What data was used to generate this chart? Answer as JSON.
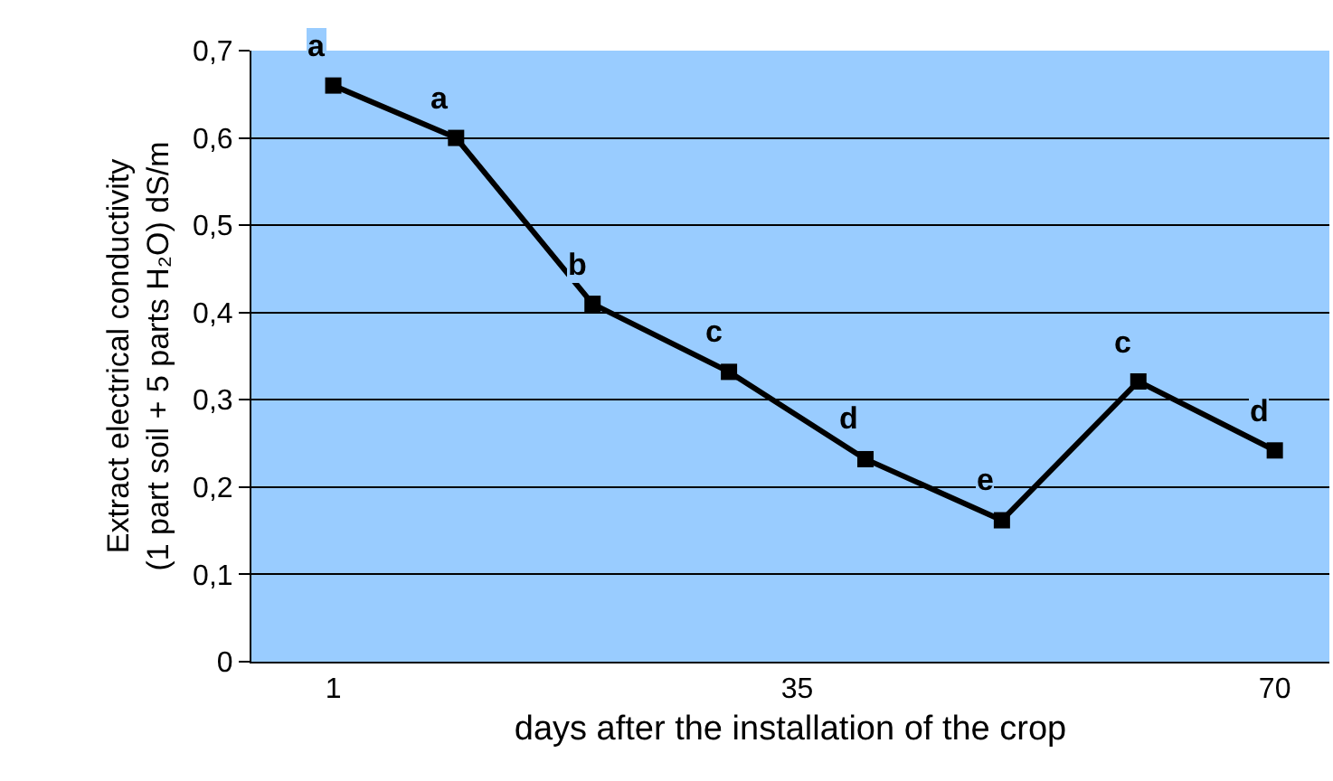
{
  "chart_data": {
    "type": "line",
    "xlabel": "days after the installation of the crop",
    "ylabel": "Extract electrical conductivity\n(1 part soil + 5 parts H₂O) dS/m",
    "x": [
      1,
      10,
      20,
      30,
      40,
      50,
      60,
      70
    ],
    "series": [
      {
        "color": "#000000",
        "values": [
          0.66,
          0.6,
          0.41,
          0.332,
          0.232,
          0.162,
          0.321,
          0.242
        ]
      }
    ],
    "xlim": [
      -5,
      74
    ],
    "xticks": [
      1,
      35,
      70
    ],
    "ylim": [
      0,
      0.7
    ],
    "yticks": [
      {
        "value": 0,
        "label": "0"
      },
      {
        "value": 0.1,
        "label": "0,1"
      },
      {
        "value": 0.2,
        "label": "0,2"
      },
      {
        "value": 0.3,
        "label": "0,3"
      },
      {
        "value": 0.4,
        "label": "0,4"
      },
      {
        "value": 0.5,
        "label": "0,5"
      },
      {
        "value": 0.6,
        "label": "0,6"
      },
      {
        "value": 0.7,
        "label": "0,7"
      }
    ],
    "grid": "y",
    "marker": "square",
    "line_style": "solid",
    "annotations": [
      {
        "text": "a",
        "x": 1,
        "y": 0.66
      },
      {
        "text": "a",
        "x": 10,
        "y": 0.6
      },
      {
        "text": "b",
        "x": 20,
        "y": 0.41
      },
      {
        "text": "c",
        "x": 30,
        "y": 0.332
      },
      {
        "text": "d",
        "x": 40,
        "y": 0.232
      },
      {
        "text": "e",
        "x": 50,
        "y": 0.162
      },
      {
        "text": "c",
        "x": 60,
        "y": 0.321
      },
      {
        "text": "d",
        "x": 70,
        "y": 0.242
      }
    ]
  }
}
